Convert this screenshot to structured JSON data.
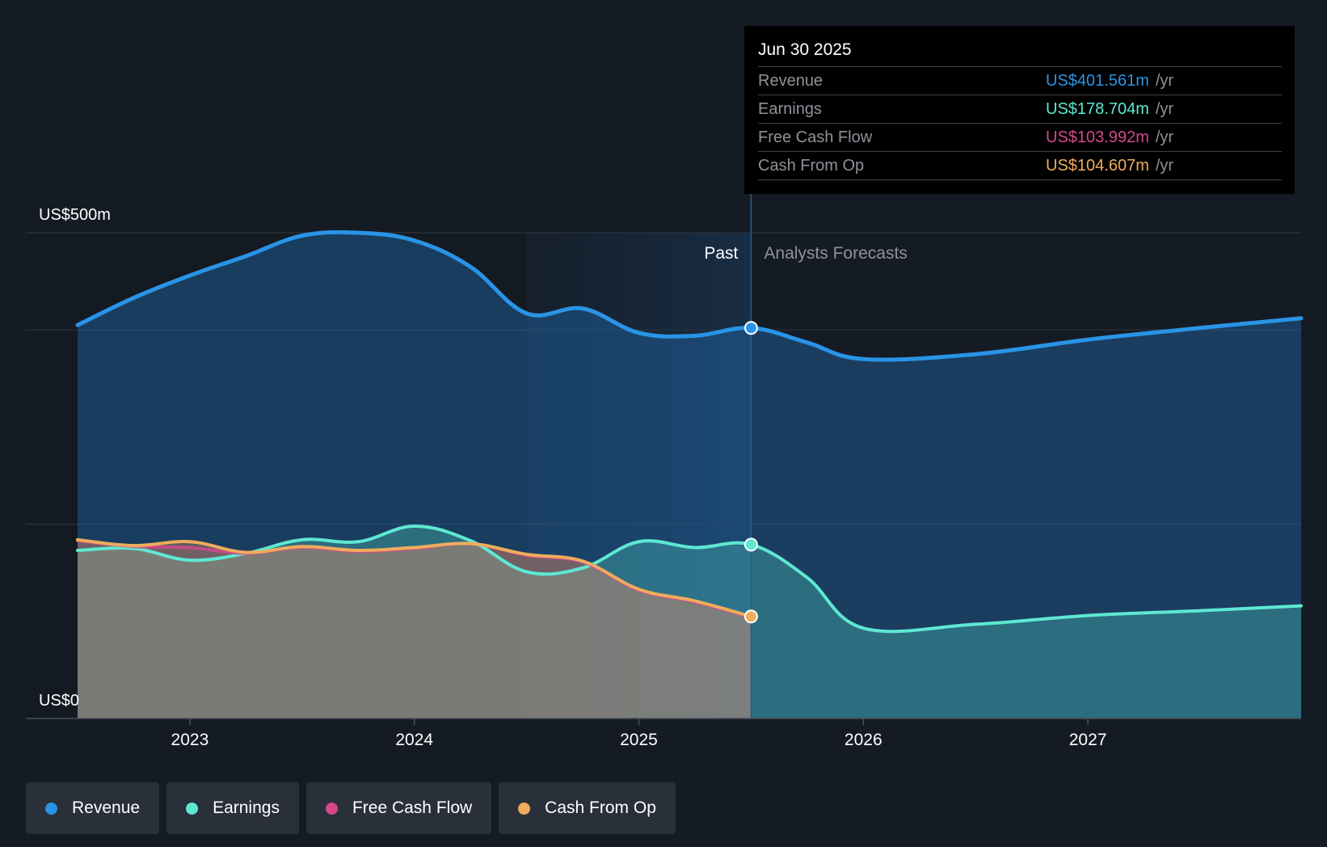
{
  "tooltip": {
    "date": "Jun 30 2025",
    "rows": [
      {
        "label": "Revenue",
        "value": "US$401.561m",
        "unit": "/yr",
        "color": "#2994e6"
      },
      {
        "label": "Earnings",
        "value": "US$178.704m",
        "unit": "/yr",
        "color": "#5ee8d2"
      },
      {
        "label": "Free Cash Flow",
        "value": "US$103.992m",
        "unit": "/yr",
        "color": "#d5488c"
      },
      {
        "label": "Cash From Op",
        "value": "US$104.607m",
        "unit": "/yr",
        "color": "#eeac5c"
      }
    ]
  },
  "legend": [
    {
      "label": "Revenue",
      "color": "#2994e6"
    },
    {
      "label": "Earnings",
      "color": "#5ee8d2"
    },
    {
      "label": "Free Cash Flow",
      "color": "#d5488c"
    },
    {
      "label": "Cash From Op",
      "color": "#eeac5c"
    }
  ],
  "chart_data": {
    "type": "area",
    "y_unit": "US$ millions",
    "ylim": [
      0,
      500
    ],
    "y_tick_labels": [
      {
        "value": 500,
        "label": "US$500m"
      },
      {
        "value": 0,
        "label": "US$0"
      }
    ],
    "gridlines": [
      0,
      200,
      400,
      500
    ],
    "xlim": [
      2022.35,
      2027.95
    ],
    "x_ticks": [
      2023,
      2024,
      2025,
      2026,
      2027
    ],
    "regions": {
      "past_label": "Past",
      "forecast_label": "Analysts Forecasts",
      "divider_x": 2025.5,
      "highlight_start_x": 2024.5
    },
    "series": [
      {
        "name": "Revenue",
        "color": "#2994e6",
        "points": [
          [
            2022.5,
            405
          ],
          [
            2022.75,
            433
          ],
          [
            2023,
            456
          ],
          [
            2023.25,
            476
          ],
          [
            2023.5,
            497
          ],
          [
            2023.75,
            500
          ],
          [
            2024,
            492
          ],
          [
            2024.25,
            465
          ],
          [
            2024.5,
            417
          ],
          [
            2024.75,
            422
          ],
          [
            2025,
            397
          ],
          [
            2025.25,
            394
          ],
          [
            2025.5,
            402
          ],
          [
            2025.75,
            387
          ],
          [
            2026,
            370
          ],
          [
            2026.5,
            375
          ],
          [
            2027,
            390
          ],
          [
            2027.5,
            402
          ],
          [
            2027.95,
            412
          ]
        ]
      },
      {
        "name": "Earnings",
        "color": "#5ee8d2",
        "points": [
          [
            2022.5,
            173
          ],
          [
            2022.75,
            175
          ],
          [
            2023,
            163
          ],
          [
            2023.25,
            170
          ],
          [
            2023.5,
            184
          ],
          [
            2023.75,
            182
          ],
          [
            2024,
            198
          ],
          [
            2024.25,
            183
          ],
          [
            2024.5,
            151
          ],
          [
            2024.75,
            155
          ],
          [
            2025,
            182
          ],
          [
            2025.25,
            176
          ],
          [
            2025.5,
            179
          ],
          [
            2025.75,
            145
          ],
          [
            2026,
            93
          ],
          [
            2026.5,
            97
          ],
          [
            2027,
            106
          ],
          [
            2027.5,
            111
          ],
          [
            2027.95,
            116
          ]
        ]
      },
      {
        "name": "Free Cash Flow",
        "color": "#d5488c",
        "points": [
          [
            2022.5,
            183
          ],
          [
            2022.75,
            177
          ],
          [
            2023,
            176
          ],
          [
            2023.25,
            170
          ],
          [
            2023.5,
            176
          ],
          [
            2023.75,
            172
          ],
          [
            2024,
            175
          ],
          [
            2024.25,
            180
          ],
          [
            2024.5,
            168
          ],
          [
            2024.75,
            161
          ],
          [
            2025,
            132
          ],
          [
            2025.25,
            120
          ],
          [
            2025.5,
            104
          ]
        ]
      },
      {
        "name": "Cash From Op",
        "color": "#eeac5c",
        "points": [
          [
            2022.5,
            184
          ],
          [
            2022.75,
            178
          ],
          [
            2023,
            182
          ],
          [
            2023.25,
            171
          ],
          [
            2023.5,
            177
          ],
          [
            2023.75,
            173
          ],
          [
            2024,
            176
          ],
          [
            2024.25,
            180
          ],
          [
            2024.5,
            169
          ],
          [
            2024.75,
            162
          ],
          [
            2025,
            133
          ],
          [
            2025.25,
            121
          ],
          [
            2025.5,
            105
          ]
        ]
      }
    ]
  }
}
